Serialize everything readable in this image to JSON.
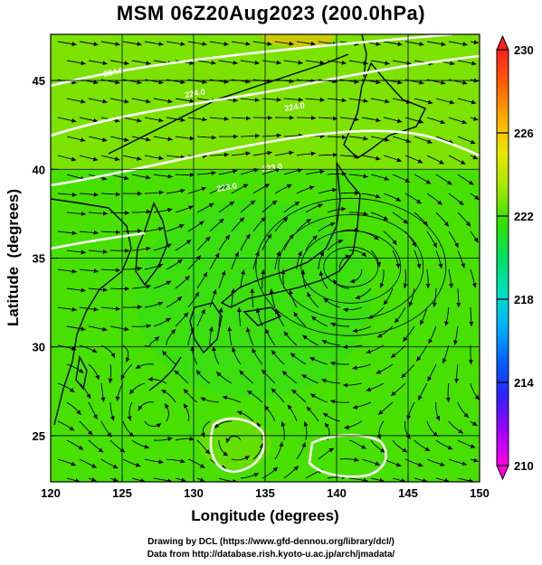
{
  "title": "MSM 06Z20Aug2023 (200.0hPa)",
  "credits": [
    "Drawing by DCL (https://www.gfd-dennou.org/library/dcl/)",
    "Data from http://database.rish.kyoto-u.ac.jp/arch/jmadata/"
  ],
  "chart_data": {
    "type": "heatmap",
    "xlabel": "Longitude (degrees)",
    "ylabel": "Latitude  (degrees)",
    "xlim": [
      120,
      150
    ],
    "ylim": [
      22.4,
      47.6
    ],
    "xticks": [
      120,
      125,
      130,
      135,
      140,
      145,
      150
    ],
    "yticks": [
      25,
      30,
      35,
      40,
      45
    ],
    "grid": true,
    "contour_labels": [
      "224.0",
      "224.0",
      "224.0",
      "223.0",
      "223.0"
    ],
    "vortices": [
      {
        "name": "upper-low-kanto",
        "lon": 141,
        "lat": 34.5
      },
      {
        "name": "anticyclone-west",
        "lon": 127,
        "lat": 26
      },
      {
        "name": "anticyclone-south",
        "lon": 133,
        "lat": 24.5
      }
    ],
    "colorbar": {
      "min": 210,
      "max": 230,
      "ticks": [
        210,
        214,
        218,
        222,
        226,
        230
      ],
      "colors": [
        "#ff00e0",
        "#a000ff",
        "#3020ff",
        "#0060ff",
        "#00b0ff",
        "#00e0c0",
        "#00e060",
        "#30e000",
        "#a0e800",
        "#e8e800",
        "#ffb000",
        "#ff6000",
        "#ff2020"
      ]
    },
    "field_colors": {
      "main": "#50e000",
      "warm": "#a0e400",
      "cool": "#30dc20"
    }
  }
}
